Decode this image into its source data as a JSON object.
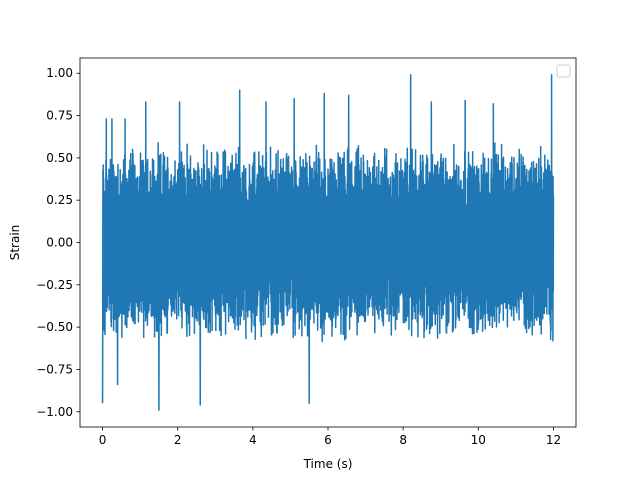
{
  "chart_data": {
    "type": "line",
    "title": "",
    "xlabel": "Time (s)",
    "ylabel": "Strain",
    "xlim": [
      -0.6,
      12.6
    ],
    "ylim": [
      -1.09,
      1.09
    ],
    "x_ticks": [
      0,
      2,
      4,
      6,
      8,
      10,
      12
    ],
    "x_tick_labels": [
      "0",
      "2",
      "4",
      "6",
      "8",
      "10",
      "12"
    ],
    "y_ticks": [
      -1.0,
      -0.75,
      -0.5,
      -0.25,
      0.0,
      0.25,
      0.5,
      0.75,
      1.0
    ],
    "y_tick_labels": [
      "−1.00",
      "−0.75",
      "−0.50",
      "−0.25",
      "0.00",
      "0.25",
      "0.50",
      "0.75",
      "1.00"
    ],
    "grid": false,
    "legend": {
      "placement": "top-right",
      "entries": []
    },
    "series_color": "#1f77b4",
    "series": [
      {
        "x_start": 0,
        "x_end": 12,
        "description_values": {
          "typical_abs_range": [
            0.4,
            0.6
          ],
          "max": 1.0,
          "min": -1.0,
          "notable_peaks": [
            {
              "x": 0.0,
              "y": -0.95
            },
            {
              "x": 0.1,
              "y": 0.73
            },
            {
              "x": 0.25,
              "y": 0.73
            },
            {
              "x": 0.4,
              "y": -0.84
            },
            {
              "x": 0.6,
              "y": 0.73
            },
            {
              "x": 1.15,
              "y": 0.83
            },
            {
              "x": 1.5,
              "y": -0.99
            },
            {
              "x": 2.05,
              "y": 0.83
            },
            {
              "x": 2.6,
              "y": -0.96
            },
            {
              "x": 3.65,
              "y": 0.9
            },
            {
              "x": 4.35,
              "y": 0.83
            },
            {
              "x": 5.1,
              "y": 0.85
            },
            {
              "x": 5.5,
              "y": -0.95
            },
            {
              "x": 5.9,
              "y": 0.88
            },
            {
              "x": 6.55,
              "y": 0.87
            },
            {
              "x": 8.2,
              "y": 0.99
            },
            {
              "x": 8.75,
              "y": 0.83
            },
            {
              "x": 9.65,
              "y": 0.84
            },
            {
              "x": 10.4,
              "y": 0.82
            },
            {
              "x": 11.95,
              "y": 0.99
            }
          ]
        }
      }
    ]
  }
}
